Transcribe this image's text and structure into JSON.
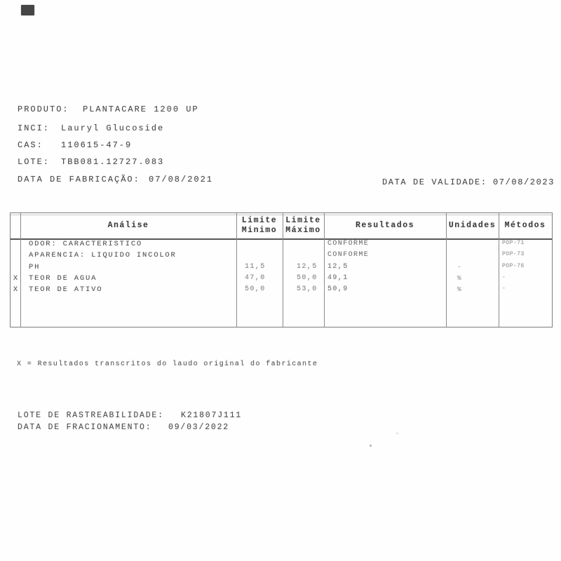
{
  "header": {
    "fields": [
      {
        "label": "PRODUTO:",
        "value": "PLANTACARE 1200 UP"
      },
      {
        "label": "INCI:",
        "value": "Lauryl Glucoside"
      },
      {
        "label": "CAS:",
        "value": "110615-47-9"
      },
      {
        "label": "LOTE:",
        "value": "TBB081.12727.083"
      },
      {
        "label": "DATA DE FABRICAÇÃO:",
        "value": "07/08/2021"
      }
    ],
    "validade": {
      "label": "DATA DE VALIDADE:",
      "value": "07/08/2023"
    }
  },
  "table": {
    "columns": {
      "analise": "Análise",
      "limite_min_l1": "Limite",
      "limite_min_l2": "Minimo",
      "limite_max_l1": "Limite",
      "limite_max_l2": "Máximo",
      "resultados": "Resultados",
      "unidades": "Unidades",
      "metodos": "Métodos"
    },
    "rows": [
      {
        "x": "",
        "analise": "ODOR: CARACTERISTICO",
        "min": "",
        "max": "",
        "resultado": "CONFORME",
        "unidade": "",
        "metodo": "POP-71"
      },
      {
        "x": "",
        "analise": "APARENCIA: LIQUIDO INCOLOR",
        "min": "",
        "max": "",
        "resultado": "CONFORME",
        "unidade": "",
        "metodo": "POP-73"
      },
      {
        "x": "",
        "analise": "PH",
        "min": "11,5",
        "max": "12,5",
        "resultado": "12,5",
        "unidade": "-",
        "metodo": "POP-76"
      },
      {
        "x": "X",
        "analise": "TEOR DE AGUA",
        "min": "47,0",
        "max": "50,0",
        "resultado": "49,1",
        "unidade": "%",
        "metodo": "-"
      },
      {
        "x": "X",
        "analise": "TEOR DE ATIVO",
        "min": "50,0",
        "max": "53,0",
        "resultado": "50,9",
        "unidade": "%",
        "metodo": "-"
      }
    ]
  },
  "footnote": "X = Resultados transcritos do laudo original do fabricante",
  "footer": {
    "rastreabilidade": {
      "label": "LOTE DE RASTREABILIDADE:",
      "value": "K21807J111"
    },
    "fracionamento": {
      "label": "DATA DE FRACIONAMENTO:",
      "value": "09/03/2022"
    }
  },
  "colors": {
    "ink": "#4a4a4a",
    "faint_ink": "#8e8e8e",
    "border": "#7d7d7d",
    "corner_mark": "#454545"
  }
}
